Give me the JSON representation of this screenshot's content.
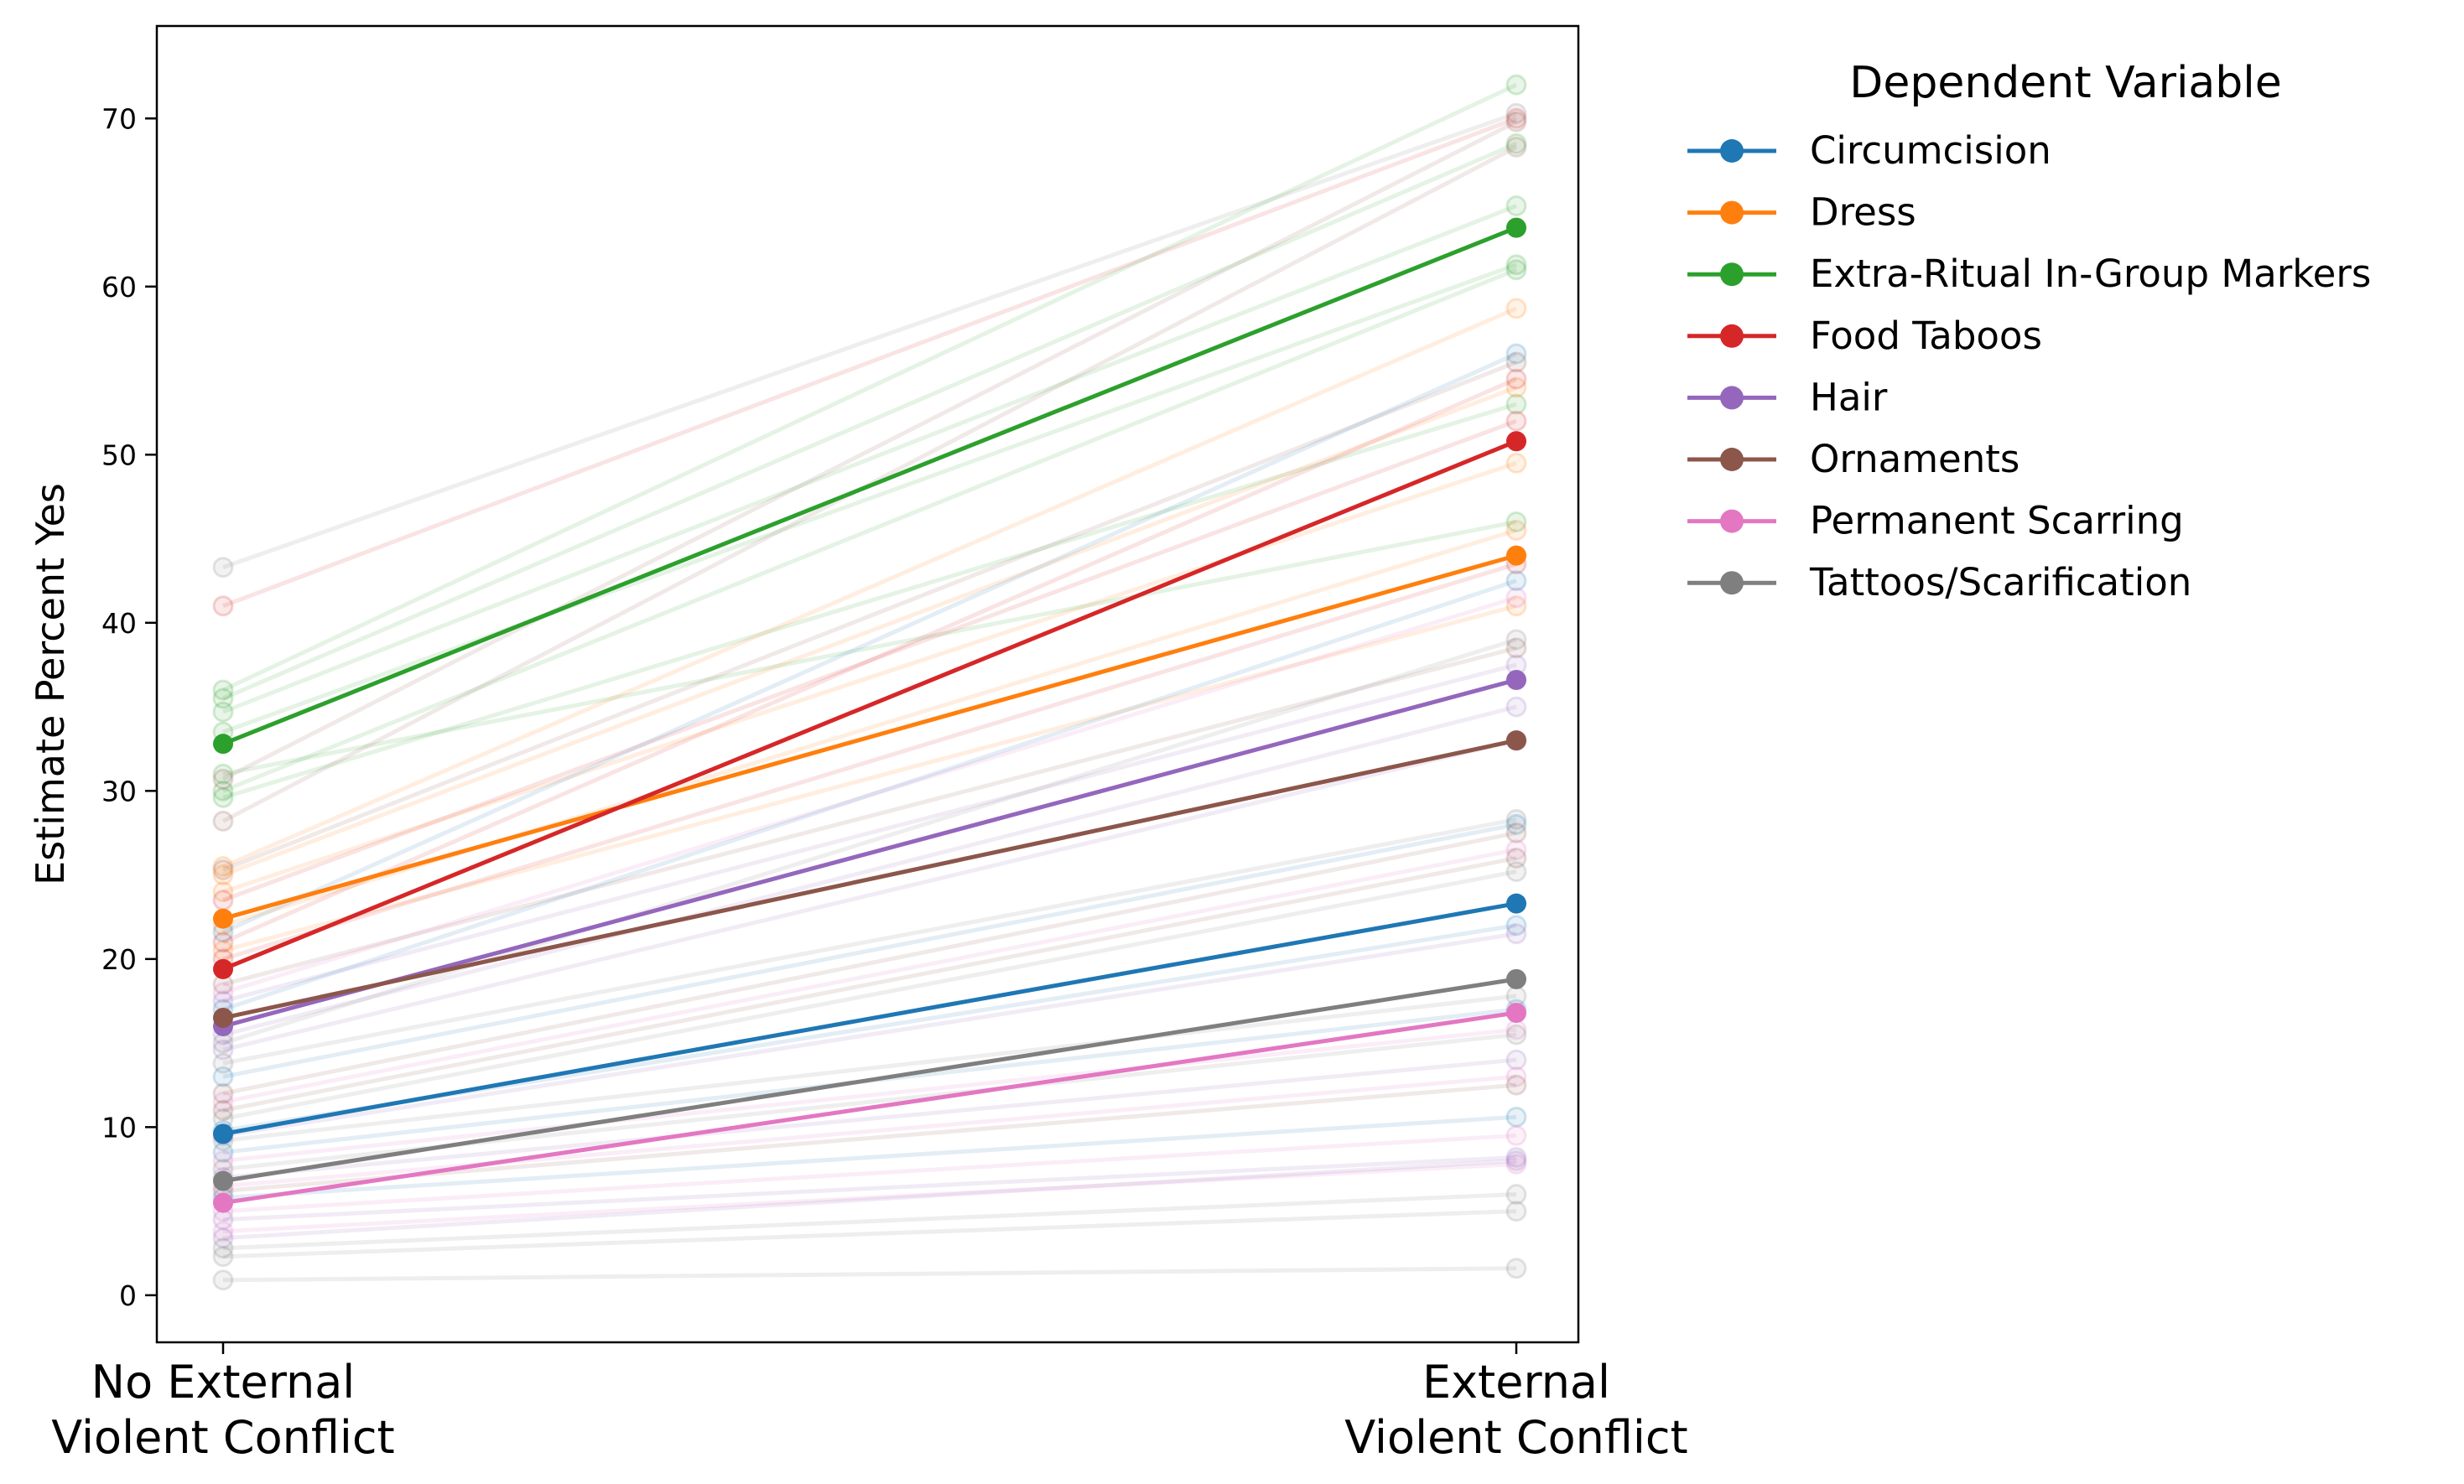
{
  "chart_data": {
    "type": "line",
    "ylabel": "Estimate Percent Yes",
    "categories": [
      "No External\nViolent Conflict",
      "External\nViolent Conflict"
    ],
    "yticks": [
      0,
      10,
      20,
      30,
      40,
      50,
      60,
      70
    ],
    "ylim": [
      -2.8,
      75.5
    ],
    "grid": false,
    "legend": {
      "title": "Dependent Variable",
      "placement": "outside-right-top"
    },
    "series": [
      {
        "name": "Circumcision",
        "color": "#1f77b4",
        "values": [
          9.6,
          23.3
        ]
      },
      {
        "name": "Dress",
        "color": "#ff7f0e",
        "values": [
          22.4,
          44.0
        ]
      },
      {
        "name": "Extra-Ritual In-Group Markers",
        "color": "#2ca02c",
        "values": [
          32.8,
          63.5
        ]
      },
      {
        "name": "Food Taboos",
        "color": "#d62728",
        "values": [
          19.4,
          50.8
        ]
      },
      {
        "name": "Hair",
        "color": "#9467bd",
        "values": [
          16.0,
          36.6
        ]
      },
      {
        "name": "Ornaments",
        "color": "#8c564b",
        "values": [
          16.5,
          33.0
        ]
      },
      {
        "name": "Permanent Scarring",
        "color": "#e377c2",
        "values": [
          5.5,
          16.8
        ]
      },
      {
        "name": "Tattoos/Scarification",
        "color": "#7f7f7f",
        "values": [
          6.8,
          18.8
        ]
      }
    ],
    "background_lines": [
      {
        "color": "#7f7f7f",
        "values": [
          43.3,
          70.3
        ]
      },
      {
        "color": "#d62728",
        "values": [
          41.0,
          70.0
        ]
      },
      {
        "color": "#2ca02c",
        "values": [
          36.0,
          72.0
        ]
      },
      {
        "color": "#2ca02c",
        "values": [
          35.5,
          68.5
        ]
      },
      {
        "color": "#2ca02c",
        "values": [
          34.7,
          64.8
        ]
      },
      {
        "color": "#2ca02c",
        "values": [
          33.5,
          61.3
        ]
      },
      {
        "color": "#2ca02c",
        "values": [
          30.0,
          61.0
        ]
      },
      {
        "color": "#2ca02c",
        "values": [
          29.6,
          53.0
        ]
      },
      {
        "color": "#2ca02c",
        "values": [
          31.0,
          46.0
        ]
      },
      {
        "color": "#8c564b",
        "values": [
          30.7,
          69.8
        ]
      },
      {
        "color": "#8c564b",
        "values": [
          28.2,
          68.3
        ]
      },
      {
        "color": "#ff7f0e",
        "values": [
          25.5,
          58.7
        ]
      },
      {
        "color": "#8c564b",
        "values": [
          25.3,
          55.5
        ]
      },
      {
        "color": "#ff7f0e",
        "values": [
          25.0,
          54.0
        ]
      },
      {
        "color": "#ff7f0e",
        "values": [
          24.0,
          49.5
        ]
      },
      {
        "color": "#d62728",
        "values": [
          23.5,
          52.0
        ]
      },
      {
        "color": "#ff7f0e",
        "values": [
          22.0,
          45.5
        ]
      },
      {
        "color": "#1f77b4",
        "values": [
          21.6,
          56.0
        ]
      },
      {
        "color": "#d62728",
        "values": [
          21.0,
          54.5
        ]
      },
      {
        "color": "#ff7f0e",
        "values": [
          20.5,
          41.0
        ]
      },
      {
        "color": "#d62728",
        "values": [
          20.0,
          43.5
        ]
      },
      {
        "color": "#8c564b",
        "values": [
          18.5,
          38.5
        ]
      },
      {
        "color": "#e377c2",
        "values": [
          18.0,
          41.5
        ]
      },
      {
        "color": "#9467bd",
        "values": [
          17.5,
          37.5
        ]
      },
      {
        "color": "#1f77b4",
        "values": [
          17.0,
          42.5
        ]
      },
      {
        "color": "#9467bd",
        "values": [
          15.5,
          35.0
        ]
      },
      {
        "color": "#7f7f7f",
        "values": [
          15.0,
          39.0
        ]
      },
      {
        "color": "#9467bd",
        "values": [
          14.6,
          33.0
        ]
      },
      {
        "color": "#7f7f7f",
        "values": [
          13.8,
          28.3
        ]
      },
      {
        "color": "#1f77b4",
        "values": [
          13.0,
          28.0
        ]
      },
      {
        "color": "#8c564b",
        "values": [
          12.0,
          27.5
        ]
      },
      {
        "color": "#e377c2",
        "values": [
          11.5,
          26.5
        ]
      },
      {
        "color": "#8c564b",
        "values": [
          11.0,
          26.0
        ]
      },
      {
        "color": "#7f7f7f",
        "values": [
          10.5,
          25.2
        ]
      },
      {
        "color": "#1f77b4",
        "values": [
          9.8,
          22.0
        ]
      },
      {
        "color": "#9467bd",
        "values": [
          9.5,
          21.5
        ]
      },
      {
        "color": "#7f7f7f",
        "values": [
          9.2,
          17.8
        ]
      },
      {
        "color": "#1f77b4",
        "values": [
          8.5,
          17.0
        ]
      },
      {
        "color": "#e377c2",
        "values": [
          8.0,
          15.8
        ]
      },
      {
        "color": "#7f7f7f",
        "values": [
          7.5,
          15.5
        ]
      },
      {
        "color": "#9467bd",
        "values": [
          7.0,
          14.0
        ]
      },
      {
        "color": "#e377c2",
        "values": [
          6.5,
          13.0
        ]
      },
      {
        "color": "#8c564b",
        "values": [
          6.2,
          12.5
        ]
      },
      {
        "color": "#1f77b4",
        "values": [
          5.8,
          10.6
        ]
      },
      {
        "color": "#e377c2",
        "values": [
          5.0,
          9.5
        ]
      },
      {
        "color": "#9467bd",
        "values": [
          4.5,
          8.2
        ]
      },
      {
        "color": "#e377c2",
        "values": [
          3.8,
          7.8
        ]
      },
      {
        "color": "#9467bd",
        "values": [
          3.4,
          8.0
        ]
      },
      {
        "color": "#7f7f7f",
        "values": [
          2.8,
          6.0
        ]
      },
      {
        "color": "#7f7f7f",
        "values": [
          2.3,
          5.0
        ]
      },
      {
        "color": "#7f7f7f",
        "values": [
          0.9,
          1.6
        ]
      }
    ]
  }
}
